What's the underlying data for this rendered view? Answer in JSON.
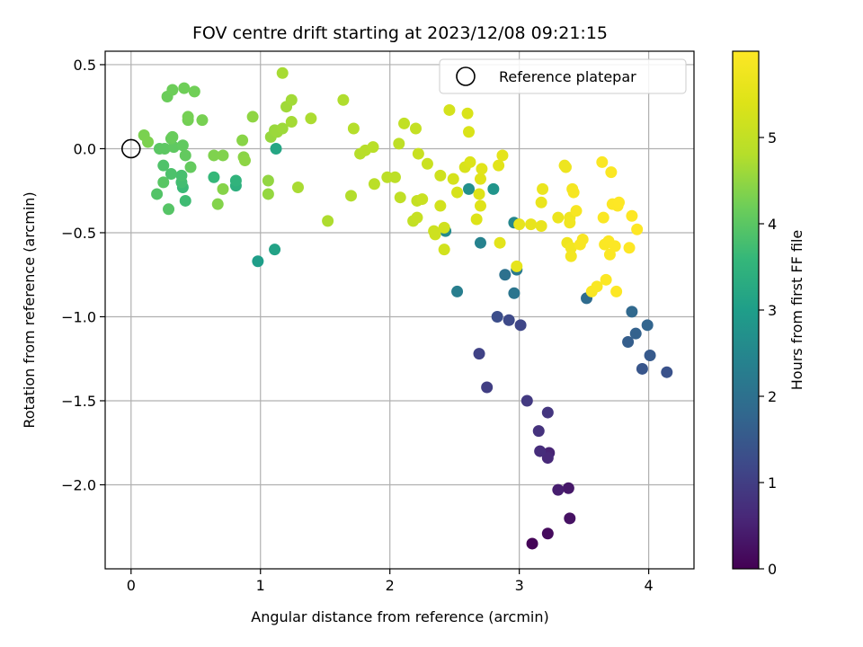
{
  "chart_data": {
    "type": "scatter",
    "title": "FOV centre drift starting at 2023/12/08 09:21:15",
    "xlabel": "Angular distance from reference (arcmin)",
    "ylabel": "Rotation from reference (arcmin)",
    "xlim": [
      -0.2,
      4.35
    ],
    "ylim": [
      -2.5,
      0.58
    ],
    "xticks": [
      0,
      1,
      2,
      3,
      4
    ],
    "yticks": [
      0.5,
      0.0,
      -0.5,
      -1.0,
      -1.5,
      -2.0
    ],
    "xtick_labels": [
      "0",
      "1",
      "2",
      "3",
      "4"
    ],
    "ytick_labels": [
      "0.5",
      "0.0",
      "−0.5",
      "−1.0",
      "−1.5",
      "−2.0"
    ],
    "grid": true,
    "legend": {
      "position": "top-right",
      "entries": [
        {
          "label": "Reference platepar",
          "marker": "open-circle"
        }
      ]
    },
    "reference_point": {
      "x": 0,
      "y": 0
    },
    "colorbar": {
      "label": "Hours from first FF file",
      "colormap": "viridis",
      "range": [
        0,
        6.0
      ],
      "ticks": [
        0,
        1,
        2,
        3,
        4,
        5
      ],
      "tick_labels": [
        "0",
        "1",
        "2",
        "3",
        "4",
        "5"
      ]
    },
    "points": [
      {
        "x": 3.1,
        "y": -2.35,
        "c": 0.05
      },
      {
        "x": 3.22,
        "y": -2.29,
        "c": 0.15
      },
      {
        "x": 3.39,
        "y": -2.2,
        "c": 0.25
      },
      {
        "x": 3.38,
        "y": -2.02,
        "c": 0.35
      },
      {
        "x": 3.3,
        "y": -2.03,
        "c": 0.45
      },
      {
        "x": 3.23,
        "y": -1.81,
        "c": 0.55
      },
      {
        "x": 3.22,
        "y": -1.84,
        "c": 0.62
      },
      {
        "x": 3.16,
        "y": -1.8,
        "c": 0.7
      },
      {
        "x": 3.15,
        "y": -1.68,
        "c": 0.78
      },
      {
        "x": 3.22,
        "y": -1.57,
        "c": 0.85
      },
      {
        "x": 3.06,
        "y": -1.5,
        "c": 0.92
      },
      {
        "x": 2.75,
        "y": -1.42,
        "c": 1.0
      },
      {
        "x": 2.69,
        "y": -1.22,
        "c": 1.08
      },
      {
        "x": 3.01,
        "y": -1.05,
        "c": 1.15
      },
      {
        "x": 2.92,
        "y": -1.02,
        "c": 1.22
      },
      {
        "x": 2.83,
        "y": -1.0,
        "c": 1.3
      },
      {
        "x": 4.14,
        "y": -1.33,
        "c": 1.38
      },
      {
        "x": 3.95,
        "y": -1.31,
        "c": 1.45
      },
      {
        "x": 4.01,
        "y": -1.23,
        "c": 1.52
      },
      {
        "x": 3.84,
        "y": -1.15,
        "c": 1.6
      },
      {
        "x": 3.9,
        "y": -1.1,
        "c": 1.68
      },
      {
        "x": 3.99,
        "y": -1.05,
        "c": 1.75
      },
      {
        "x": 3.87,
        "y": -0.97,
        "c": 1.82
      },
      {
        "x": 3.52,
        "y": -0.89,
        "c": 1.9
      },
      {
        "x": 2.89,
        "y": -0.75,
        "c": 2.0
      },
      {
        "x": 2.96,
        "y": -0.86,
        "c": 2.1
      },
      {
        "x": 2.98,
        "y": -0.72,
        "c": 2.2
      },
      {
        "x": 2.52,
        "y": -0.85,
        "c": 2.3
      },
      {
        "x": 2.7,
        "y": -0.56,
        "c": 2.4
      },
      {
        "x": 2.96,
        "y": -0.44,
        "c": 2.5
      },
      {
        "x": 2.43,
        "y": -0.49,
        "c": 2.6
      },
      {
        "x": 2.61,
        "y": -0.24,
        "c": 2.7
      },
      {
        "x": 2.8,
        "y": -0.24,
        "c": 2.8
      },
      {
        "x": 0.98,
        "y": -0.67,
        "c": 3.0
      },
      {
        "x": 1.11,
        "y": -0.6,
        "c": 3.1
      },
      {
        "x": 1.12,
        "y": 0.0,
        "c": 3.2
      },
      {
        "x": 0.81,
        "y": -0.22,
        "c": 3.4
      },
      {
        "x": 0.81,
        "y": -0.19,
        "c": 3.5
      },
      {
        "x": 0.64,
        "y": -0.17,
        "c": 3.6
      },
      {
        "x": 0.4,
        "y": -0.23,
        "c": 3.65
      },
      {
        "x": 0.42,
        "y": -0.31,
        "c": 3.7
      },
      {
        "x": 0.39,
        "y": -0.2,
        "c": 3.75
      },
      {
        "x": 0.39,
        "y": -0.16,
        "c": 3.8
      },
      {
        "x": 0.31,
        "y": -0.15,
        "c": 3.85
      },
      {
        "x": 0.25,
        "y": -0.1,
        "c": 3.88
      },
      {
        "x": 0.2,
        "y": -0.27,
        "c": 3.92
      },
      {
        "x": 0.29,
        "y": -0.36,
        "c": 3.95
      },
      {
        "x": 0.25,
        "y": -0.2,
        "c": 3.98
      },
      {
        "x": 0.22,
        "y": 0.0,
        "c": 4.0
      },
      {
        "x": 0.26,
        "y": 0.0,
        "c": 4.02
      },
      {
        "x": 0.33,
        "y": 0.01,
        "c": 4.04
      },
      {
        "x": 0.4,
        "y": 0.02,
        "c": 4.06
      },
      {
        "x": 0.42,
        "y": -0.04,
        "c": 4.08
      },
      {
        "x": 0.46,
        "y": -0.11,
        "c": 4.1
      },
      {
        "x": 0.31,
        "y": 0.06,
        "c": 4.12
      },
      {
        "x": 0.32,
        "y": 0.07,
        "c": 4.14
      },
      {
        "x": 0.28,
        "y": 0.31,
        "c": 4.16
      },
      {
        "x": 0.32,
        "y": 0.35,
        "c": 4.18
      },
      {
        "x": 0.41,
        "y": 0.36,
        "c": 4.2
      },
      {
        "x": 0.49,
        "y": 0.34,
        "c": 4.22
      },
      {
        "x": 0.44,
        "y": 0.17,
        "c": 4.24
      },
      {
        "x": 0.44,
        "y": 0.19,
        "c": 4.26
      },
      {
        "x": 0.55,
        "y": 0.17,
        "c": 4.28
      },
      {
        "x": 0.1,
        "y": 0.08,
        "c": 4.3
      },
      {
        "x": 0.13,
        "y": 0.04,
        "c": 4.32
      },
      {
        "x": 0.64,
        "y": -0.04,
        "c": 4.34
      },
      {
        "x": 0.71,
        "y": -0.04,
        "c": 4.36
      },
      {
        "x": 0.67,
        "y": -0.33,
        "c": 4.38
      },
      {
        "x": 0.71,
        "y": -0.24,
        "c": 4.4
      },
      {
        "x": 0.86,
        "y": 0.05,
        "c": 4.42
      },
      {
        "x": 0.87,
        "y": -0.05,
        "c": 4.44
      },
      {
        "x": 0.88,
        "y": -0.07,
        "c": 4.46
      },
      {
        "x": 0.94,
        "y": 0.19,
        "c": 4.48
      },
      {
        "x": 1.06,
        "y": -0.19,
        "c": 4.5
      },
      {
        "x": 1.06,
        "y": -0.27,
        "c": 4.52
      },
      {
        "x": 1.08,
        "y": 0.07,
        "c": 4.54
      },
      {
        "x": 1.11,
        "y": 0.11,
        "c": 4.56
      },
      {
        "x": 1.13,
        "y": 0.1,
        "c": 4.58
      },
      {
        "x": 1.17,
        "y": 0.12,
        "c": 4.6
      },
      {
        "x": 1.2,
        "y": 0.25,
        "c": 4.62
      },
      {
        "x": 1.24,
        "y": 0.29,
        "c": 4.64
      },
      {
        "x": 1.24,
        "y": 0.16,
        "c": 4.66
      },
      {
        "x": 1.17,
        "y": 0.45,
        "c": 4.68
      },
      {
        "x": 1.29,
        "y": -0.23,
        "c": 4.7
      },
      {
        "x": 1.39,
        "y": 0.18,
        "c": 4.72
      },
      {
        "x": 1.52,
        "y": -0.43,
        "c": 4.74
      },
      {
        "x": 1.64,
        "y": 0.29,
        "c": 4.76
      },
      {
        "x": 1.7,
        "y": -0.28,
        "c": 4.78
      },
      {
        "x": 1.72,
        "y": 0.12,
        "c": 4.8
      },
      {
        "x": 1.77,
        "y": -0.03,
        "c": 4.82
      },
      {
        "x": 1.81,
        "y": -0.01,
        "c": 4.84
      },
      {
        "x": 1.87,
        "y": 0.01,
        "c": 4.86
      },
      {
        "x": 1.88,
        "y": -0.21,
        "c": 4.88
      },
      {
        "x": 1.98,
        "y": -0.17,
        "c": 4.9
      },
      {
        "x": 2.04,
        "y": -0.17,
        "c": 4.92
      },
      {
        "x": 2.07,
        "y": 0.03,
        "c": 4.94
      },
      {
        "x": 2.08,
        "y": -0.29,
        "c": 4.96
      },
      {
        "x": 2.11,
        "y": 0.15,
        "c": 4.98
      },
      {
        "x": 2.18,
        "y": -0.43,
        "c": 5.0
      },
      {
        "x": 2.2,
        "y": 0.12,
        "c": 5.02
      },
      {
        "x": 2.21,
        "y": -0.31,
        "c": 5.04
      },
      {
        "x": 2.21,
        "y": -0.41,
        "c": 5.06
      },
      {
        "x": 2.22,
        "y": -0.03,
        "c": 5.08
      },
      {
        "x": 2.25,
        "y": -0.3,
        "c": 5.1
      },
      {
        "x": 2.29,
        "y": -0.09,
        "c": 5.12
      },
      {
        "x": 2.34,
        "y": -0.49,
        "c": 5.14
      },
      {
        "x": 2.35,
        "y": -0.51,
        "c": 5.16
      },
      {
        "x": 2.39,
        "y": -0.16,
        "c": 5.18
      },
      {
        "x": 2.42,
        "y": -0.47,
        "c": 5.2
      },
      {
        "x": 2.42,
        "y": -0.6,
        "c": 5.22
      },
      {
        "x": 2.39,
        "y": -0.34,
        "c": 5.24
      },
      {
        "x": 2.46,
        "y": 0.23,
        "c": 5.26
      },
      {
        "x": 2.49,
        "y": -0.18,
        "c": 5.28
      },
      {
        "x": 2.52,
        "y": -0.26,
        "c": 5.3
      },
      {
        "x": 2.58,
        "y": -0.11,
        "c": 5.32
      },
      {
        "x": 2.6,
        "y": 0.21,
        "c": 5.34
      },
      {
        "x": 2.61,
        "y": 0.1,
        "c": 5.36
      },
      {
        "x": 2.62,
        "y": -0.08,
        "c": 5.38
      },
      {
        "x": 2.67,
        "y": -0.42,
        "c": 5.4
      },
      {
        "x": 2.69,
        "y": -0.27,
        "c": 5.42
      },
      {
        "x": 2.7,
        "y": -0.34,
        "c": 5.44
      },
      {
        "x": 2.7,
        "y": -0.18,
        "c": 5.46
      },
      {
        "x": 2.71,
        "y": -0.12,
        "c": 5.48
      },
      {
        "x": 2.84,
        "y": -0.1,
        "c": 5.5
      },
      {
        "x": 2.85,
        "y": -0.56,
        "c": 5.52
      },
      {
        "x": 2.87,
        "y": -0.04,
        "c": 5.54
      },
      {
        "x": 2.98,
        "y": -0.7,
        "c": 5.56
      },
      {
        "x": 3.0,
        "y": -0.45,
        "c": 5.58
      },
      {
        "x": 3.09,
        "y": -0.45,
        "c": 5.6
      },
      {
        "x": 3.17,
        "y": -0.46,
        "c": 5.62
      },
      {
        "x": 3.17,
        "y": -0.32,
        "c": 5.64
      },
      {
        "x": 3.18,
        "y": -0.24,
        "c": 5.66
      },
      {
        "x": 3.3,
        "y": -0.41,
        "c": 5.68
      },
      {
        "x": 3.35,
        "y": -0.1,
        "c": 5.7
      },
      {
        "x": 3.36,
        "y": -0.11,
        "c": 5.72
      },
      {
        "x": 3.37,
        "y": -0.56,
        "c": 5.74
      },
      {
        "x": 3.39,
        "y": -0.41,
        "c": 5.76
      },
      {
        "x": 3.39,
        "y": -0.44,
        "c": 5.78
      },
      {
        "x": 3.4,
        "y": -0.59,
        "c": 5.8
      },
      {
        "x": 3.4,
        "y": -0.64,
        "c": 5.82
      },
      {
        "x": 3.41,
        "y": -0.24,
        "c": 5.84
      },
      {
        "x": 3.42,
        "y": -0.26,
        "c": 5.86
      },
      {
        "x": 3.44,
        "y": -0.37,
        "c": 5.88
      },
      {
        "x": 3.47,
        "y": -0.57,
        "c": 5.9
      },
      {
        "x": 3.49,
        "y": -0.54,
        "c": 5.91
      },
      {
        "x": 3.56,
        "y": -0.85,
        "c": 5.92
      },
      {
        "x": 3.6,
        "y": -0.82,
        "c": 5.93
      },
      {
        "x": 3.64,
        "y": -0.08,
        "c": 5.94
      },
      {
        "x": 3.65,
        "y": -0.41,
        "c": 5.95
      },
      {
        "x": 3.66,
        "y": -0.57,
        "c": 5.95
      },
      {
        "x": 3.67,
        "y": -0.78,
        "c": 5.96
      },
      {
        "x": 3.69,
        "y": -0.55,
        "c": 5.96
      },
      {
        "x": 3.7,
        "y": -0.63,
        "c": 5.97
      },
      {
        "x": 3.71,
        "y": -0.14,
        "c": 5.97
      },
      {
        "x": 3.72,
        "y": -0.33,
        "c": 5.98
      },
      {
        "x": 3.74,
        "y": -0.58,
        "c": 5.98
      },
      {
        "x": 3.75,
        "y": -0.85,
        "c": 5.99
      },
      {
        "x": 3.76,
        "y": -0.34,
        "c": 5.99
      },
      {
        "x": 3.77,
        "y": -0.32,
        "c": 6.0
      },
      {
        "x": 3.85,
        "y": -0.59,
        "c": 6.0
      },
      {
        "x": 3.87,
        "y": -0.4,
        "c": 6.0
      },
      {
        "x": 3.91,
        "y": -0.48,
        "c": 6.0
      }
    ]
  }
}
